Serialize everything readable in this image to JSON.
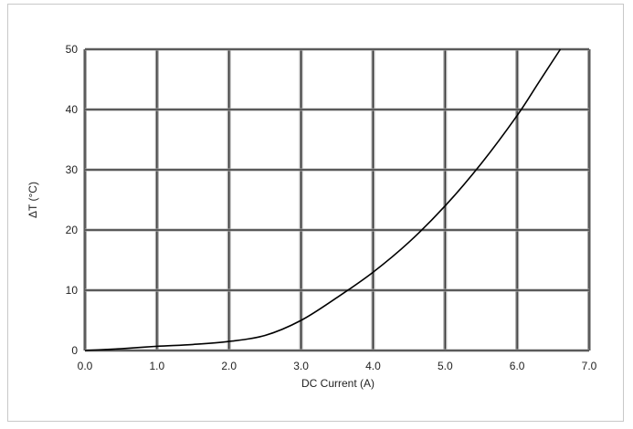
{
  "chart_data": {
    "type": "line",
    "title": "",
    "xlabel": "DC Current (A)",
    "ylabel": "ΔT (°C)",
    "xlim": [
      0,
      7
    ],
    "ylim": [
      0,
      50
    ],
    "x_ticks": [
      "0.0",
      "1.0",
      "2.0",
      "3.0",
      "4.0",
      "5.0",
      "6.0",
      "7.0"
    ],
    "y_ticks": [
      "0",
      "10",
      "20",
      "30",
      "40",
      "50"
    ],
    "grid": true,
    "legend": "none",
    "colors": {
      "line": "#000000",
      "major_grid": "#2b2b2b",
      "minor_grid": "#a8a8a8"
    },
    "series": [
      {
        "x": [
          0.0,
          0.5,
          1.0,
          1.5,
          2.0,
          2.5,
          3.0,
          3.5,
          4.0,
          4.5,
          5.0,
          5.5,
          6.0,
          6.3,
          6.6
        ],
        "y": [
          0.0,
          0.3,
          0.7,
          1.0,
          1.5,
          2.5,
          5.0,
          8.8,
          13.0,
          18.0,
          24.0,
          31.0,
          39.0,
          44.5,
          50.0
        ]
      }
    ]
  }
}
